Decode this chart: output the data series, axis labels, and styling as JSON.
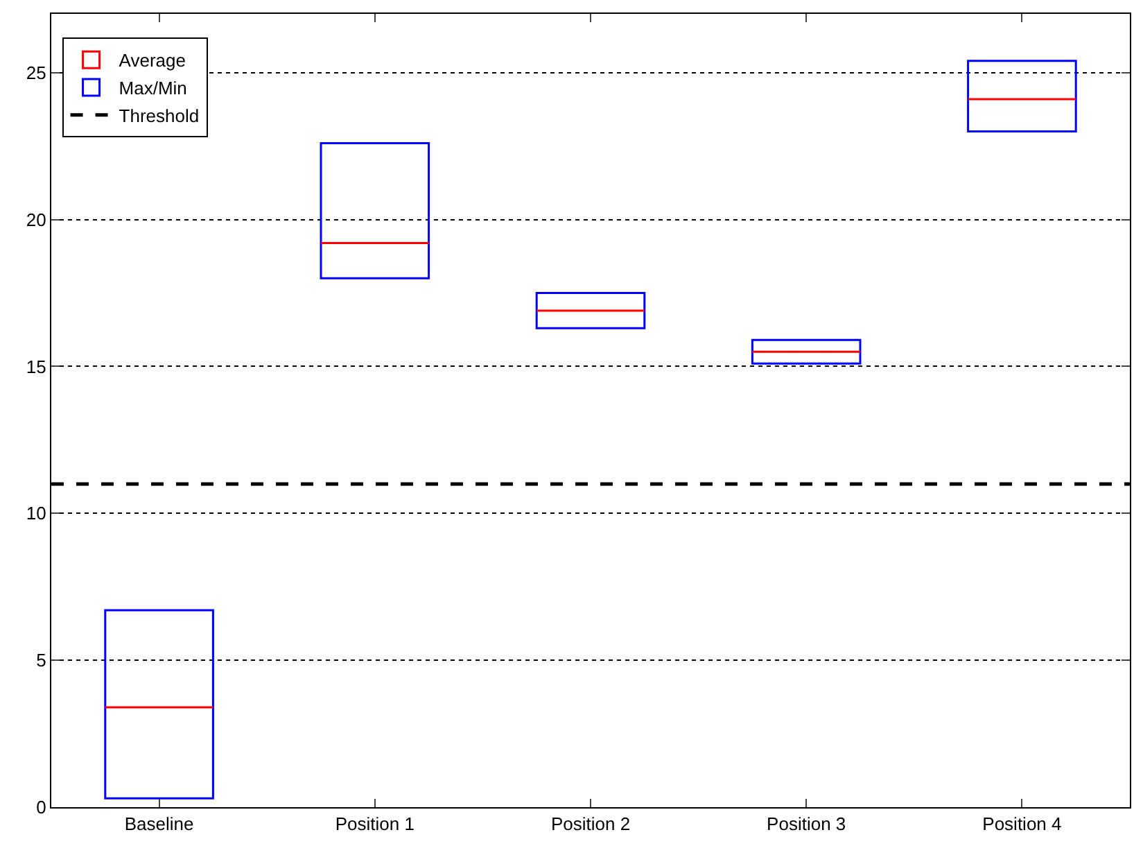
{
  "chart_data": {
    "type": "bar",
    "categories": [
      "Baseline",
      "Position 1",
      "Position 2",
      "Position 3",
      "Position 4"
    ],
    "series": [
      {
        "name": "Average",
        "type": "box",
        "color": "#ff0000",
        "boxes": [
          {
            "low": 3.4,
            "q1": 3.4,
            "median": 3.4,
            "q3": 3.4,
            "high": 3.4
          },
          {
            "low": 19.2,
            "q1": 19.2,
            "median": 19.2,
            "q3": 19.2,
            "high": 19.2
          },
          {
            "low": 16.9,
            "q1": 16.9,
            "median": 16.9,
            "q3": 16.9,
            "high": 16.9
          },
          {
            "low": 15.5,
            "q1": 15.5,
            "median": 15.5,
            "q3": 15.5,
            "high": 15.5
          },
          {
            "low": 24.1,
            "q1": 24.1,
            "median": 24.1,
            "q3": 24.1,
            "high": 24.1
          }
        ]
      },
      {
        "name": "Max/Min",
        "color": "#0000ff",
        "base": [
          0.3,
          18.0,
          16.3,
          15.1,
          23.0
        ],
        "values": [
          6.4,
          4.6,
          1.2,
          0.8,
          2.4
        ]
      }
    ],
    "ylim": [
      0,
      27
    ],
    "yticks": [
      0,
      5,
      10,
      15,
      20,
      25
    ],
    "grid": "y",
    "legend": "top left",
    "ref_lines": [
      {
        "axis": "y",
        "value": 11,
        "label": "Threshold",
        "color": "#000000",
        "line_style": "dashed"
      }
    ]
  }
}
